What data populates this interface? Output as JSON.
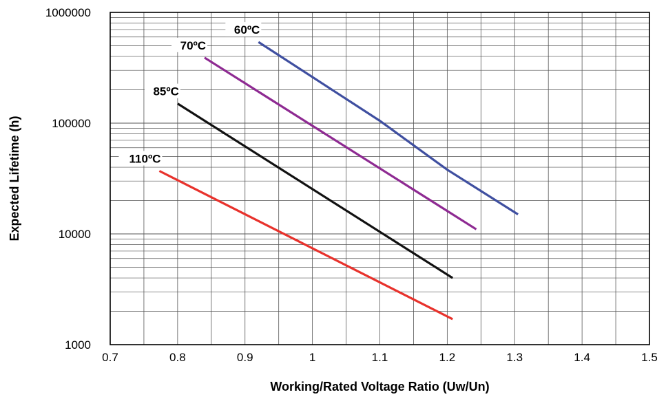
{
  "chart_data": {
    "type": "line",
    "xlabel": "Working/Rated Voltage Ratio (Uw/Un)",
    "ylabel": "Expected Lifetime (h)",
    "xlim": [
      0.7,
      1.5
    ],
    "ylim": [
      1000,
      1000000
    ],
    "y_scale": "log",
    "grid": true,
    "x_ticks": [
      "0.7",
      "0.8",
      "0.9",
      "1",
      "1.1",
      "1.2",
      "1.3",
      "1.4",
      "1.5"
    ],
    "y_ticks": [
      "1000",
      "10000",
      "100000",
      "1000000"
    ],
    "series": [
      {
        "name": "60ºC",
        "color": "#3f4fa0",
        "points": [
          [
            0.92,
            540000
          ],
          [
            1.1,
            105000
          ],
          [
            1.2,
            38000
          ],
          [
            1.305,
            15000
          ]
        ]
      },
      {
        "name": "70ºC",
        "color": "#8e2a92",
        "points": [
          [
            0.84,
            390000
          ],
          [
            1.243,
            11000
          ]
        ]
      },
      {
        "name": "85ºC",
        "color": "#111111",
        "points": [
          [
            0.8,
            150000
          ],
          [
            1.208,
            4000
          ]
        ]
      },
      {
        "name": "110ºC",
        "color": "#e8322c",
        "points": [
          [
            0.773,
            37000
          ],
          [
            1.208,
            1700
          ]
        ]
      }
    ]
  }
}
